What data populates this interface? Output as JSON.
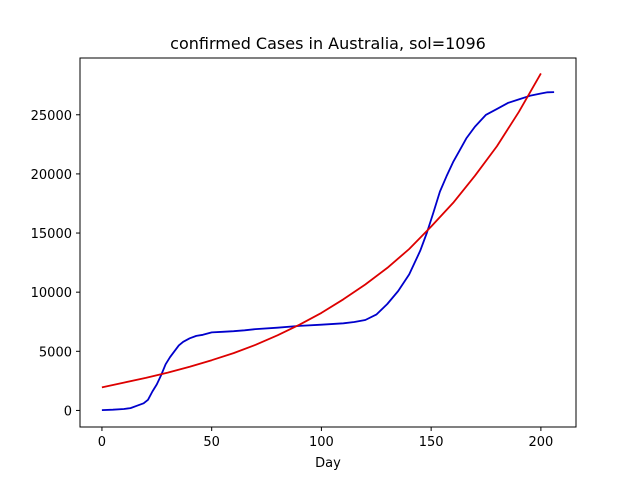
{
  "chart_data": {
    "type": "line",
    "title": "confirmed Cases in Australia, sol=1096",
    "xlabel": "Day",
    "ylabel": "",
    "xlim": [
      -10,
      216
    ],
    "ylim": [
      -1400,
      29800
    ],
    "xticks": [
      0,
      50,
      100,
      150,
      200
    ],
    "yticks": [
      0,
      5000,
      10000,
      15000,
      20000,
      25000
    ],
    "grid": false,
    "legend": "none",
    "series": [
      {
        "color": "#0000cc",
        "x": [
          0,
          5,
          10,
          13,
          16,
          19,
          21,
          23,
          25,
          27,
          29,
          31,
          33,
          35,
          37,
          40,
          43,
          46,
          50,
          55,
          60,
          65,
          70,
          80,
          90,
          100,
          110,
          115,
          120,
          125,
          130,
          135,
          140,
          145,
          148,
          151,
          154,
          157,
          160,
          163,
          166,
          170,
          175,
          180,
          185,
          190,
          195,
          200,
          203,
          206
        ],
        "y": [
          30,
          60,
          120,
          200,
          400,
          600,
          900,
          1600,
          2200,
          3000,
          3900,
          4500,
          5000,
          5500,
          5800,
          6100,
          6300,
          6400,
          6600,
          6650,
          6700,
          6780,
          6880,
          7000,
          7150,
          7250,
          7370,
          7480,
          7650,
          8100,
          9000,
          10100,
          11500,
          13500,
          15000,
          16700,
          18500,
          19800,
          21000,
          22000,
          23000,
          24000,
          25000,
          25500,
          26000,
          26300,
          26600,
          26800,
          26900,
          26920
        ]
      },
      {
        "color": "#dd0000",
        "x": [
          0,
          10,
          20,
          30,
          40,
          50,
          60,
          70,
          80,
          90,
          100,
          110,
          120,
          130,
          140,
          150,
          160,
          170,
          180,
          190,
          200
        ],
        "y": [
          1950,
          2350,
          2750,
          3200,
          3700,
          4250,
          4850,
          5550,
          6350,
          7250,
          8250,
          9400,
          10650,
          12050,
          13650,
          15550,
          17550,
          19850,
          22350,
          25250,
          28500
        ]
      }
    ]
  }
}
